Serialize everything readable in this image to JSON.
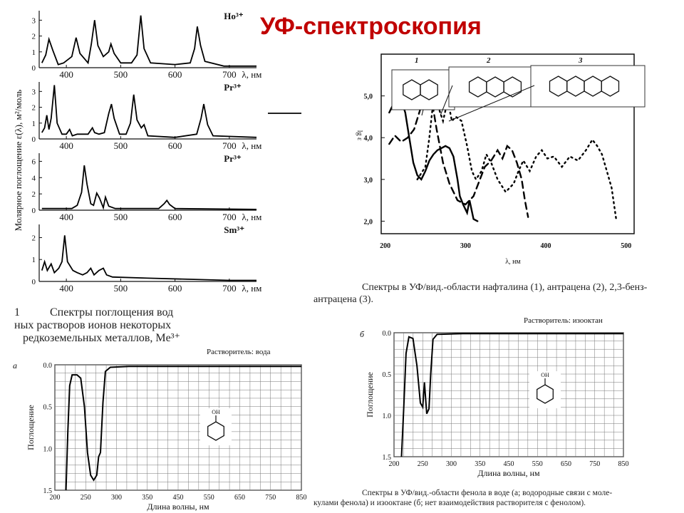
{
  "slide": {
    "title": "УФ-спектроскопия",
    "rare_earth_caption_lines": [
      "Спектры поглощения вод",
      "ных растворов ионов некоторых",
      "редкоземельных металлов, Me³⁺"
    ],
    "rare_earth_caption_number": "1",
    "aromatic_caption_lines": [
      "Спектры в УФ/вид.-области нафталина (1), антрацена (2), 2,3-бенз-",
      "антрацена (3)."
    ],
    "phenol_caption_lines": [
      "Спектры в УФ/вид.-области фенола в воде (а; водородные связи с моле-",
      "кулами фенола) и изооктане (б; нет взаимодействия растворителя с фенолом)."
    ],
    "panel_a_letter": "а",
    "panel_b_letter": "б",
    "solvent_water": "Растворитель: вода",
    "solvent_isooctane": "Растворитель: изооктан",
    "oh_label": "OH"
  },
  "chart_data": [
    {
      "id": "rare-earth",
      "type": "line",
      "ylabel": "Молярное поглощение ε(λ), м²/моль",
      "xlabel": "λ, нм",
      "x_ticks": [
        400,
        500,
        600,
        700
      ],
      "xlim": [
        350,
        750
      ],
      "panels": [
        {
          "ion": "Ho³⁺",
          "y_ticks": [
            0,
            1,
            2,
            3
          ],
          "ylim": [
            0,
            3.6
          ],
          "points": [
            [
              355,
              0.3
            ],
            [
              362,
              0.8
            ],
            [
              368,
              1.8
            ],
            [
              375,
              1.1
            ],
            [
              385,
              0.2
            ],
            [
              395,
              0.3
            ],
            [
              410,
              0.7
            ],
            [
              418,
              1.9
            ],
            [
              425,
              0.9
            ],
            [
              440,
              0.3
            ],
            [
              446,
              1.5
            ],
            [
              452,
              3.0
            ],
            [
              458,
              1.4
            ],
            [
              468,
              0.7
            ],
            [
              478,
              1.0
            ],
            [
              482,
              1.5
            ],
            [
              488,
              0.9
            ],
            [
              500,
              0.3
            ],
            [
              520,
              0.3
            ],
            [
              530,
              0.8
            ],
            [
              537,
              3.3
            ],
            [
              543,
              1.2
            ],
            [
              555,
              0.3
            ],
            [
              600,
              0.2
            ],
            [
              628,
              0.3
            ],
            [
              636,
              1.2
            ],
            [
              641,
              2.6
            ],
            [
              647,
              1.4
            ],
            [
              655,
              0.4
            ],
            [
              690,
              0.1
            ],
            [
              750,
              0.1
            ]
          ]
        },
        {
          "ion": "Pr³⁺",
          "y_ticks": [
            0,
            1,
            2,
            3
          ],
          "ylim": [
            0,
            3.6
          ],
          "points": [
            [
              355,
              0.4
            ],
            [
              360,
              0.7
            ],
            [
              364,
              1.5
            ],
            [
              368,
              0.6
            ],
            [
              372,
              1.3
            ],
            [
              378,
              3.4
            ],
            [
              383,
              1.0
            ],
            [
              392,
              0.3
            ],
            [
              400,
              0.3
            ],
            [
              406,
              0.6
            ],
            [
              411,
              0.2
            ],
            [
              420,
              0.3
            ],
            [
              440,
              0.3
            ],
            [
              448,
              0.7
            ],
            [
              452,
              0.4
            ],
            [
              460,
              0.3
            ],
            [
              470,
              0.4
            ],
            [
              478,
              1.6
            ],
            [
              483,
              2.2
            ],
            [
              488,
              1.3
            ],
            [
              498,
              0.3
            ],
            [
              510,
              0.3
            ],
            [
              518,
              1.0
            ],
            [
              524,
              2.8
            ],
            [
              530,
              1.2
            ],
            [
              538,
              0.7
            ],
            [
              543,
              0.9
            ],
            [
              550,
              0.2
            ],
            [
              600,
              0.1
            ],
            [
              640,
              0.3
            ],
            [
              648,
              1.3
            ],
            [
              653,
              2.2
            ],
            [
              660,
              0.9
            ],
            [
              670,
              0.2
            ],
            [
              750,
              0.1
            ]
          ]
        },
        {
          "ion": "Pr³⁺",
          "y_ticks": [
            0,
            2,
            4,
            6
          ],
          "ylim": [
            0,
            7
          ],
          "points": [
            [
              355,
              0.2
            ],
            [
              410,
              0.2
            ],
            [
              420,
              0.6
            ],
            [
              428,
              2.2
            ],
            [
              433,
              5.5
            ],
            [
              438,
              3.2
            ],
            [
              445,
              0.8
            ],
            [
              450,
              0.6
            ],
            [
              456,
              2.1
            ],
            [
              461,
              1.5
            ],
            [
              468,
              0.3
            ],
            [
              472,
              1.6
            ],
            [
              478,
              0.5
            ],
            [
              490,
              0.2
            ],
            [
              570,
              0.2
            ],
            [
              580,
              0.8
            ],
            [
              585,
              1.2
            ],
            [
              590,
              0.7
            ],
            [
              600,
              0.2
            ],
            [
              750,
              0.1
            ]
          ]
        },
        {
          "ion": "Sm³⁺",
          "y_ticks": [
            0,
            1,
            2
          ],
          "ylim": [
            0,
            2.6
          ],
          "points": [
            [
              355,
              0.5
            ],
            [
              360,
              0.9
            ],
            [
              365,
              0.5
            ],
            [
              372,
              0.8
            ],
            [
              378,
              0.4
            ],
            [
              386,
              0.6
            ],
            [
              392,
              0.9
            ],
            [
              397,
              2.1
            ],
            [
              402,
              0.9
            ],
            [
              412,
              0.5
            ],
            [
              420,
              0.4
            ],
            [
              430,
              0.3
            ],
            [
              438,
              0.4
            ],
            [
              445,
              0.6
            ],
            [
              451,
              0.3
            ],
            [
              460,
              0.5
            ],
            [
              468,
              0.6
            ],
            [
              474,
              0.3
            ],
            [
              485,
              0.2
            ],
            [
              550,
              0.15
            ],
            [
              700,
              0.05
            ],
            [
              750,
              0.05
            ]
          ]
        }
      ]
    },
    {
      "id": "aromatic",
      "type": "line",
      "ylabel": "lg ε",
      "xlabel": "λ, нм",
      "x_ticks": [
        200,
        300,
        400,
        500
      ],
      "y_ticks": [
        2.0,
        3.0,
        4.0,
        5.0
      ],
      "y_tick_labels": [
        "2,0",
        "3,0",
        "4,0",
        "5,0"
      ],
      "xlim": [
        195,
        510
      ],
      "ylim": [
        1.7,
        6.0
      ],
      "structure_labels": [
        "1",
        "2",
        "3"
      ],
      "series": [
        {
          "name": "1",
          "style": "solid",
          "points": [
            [
              205,
              4.6
            ],
            [
              210,
              4.8
            ],
            [
              215,
              5.0
            ],
            [
              220,
              4.9
            ],
            [
              225,
              4.6
            ],
            [
              230,
              4.0
            ],
            [
              235,
              3.4
            ],
            [
              240,
              3.1
            ],
            [
              245,
              3.0
            ],
            [
              250,
              3.2
            ],
            [
              255,
              3.45
            ],
            [
              260,
              3.6
            ],
            [
              265,
              3.7
            ],
            [
              270,
              3.75
            ],
            [
              275,
              3.8
            ],
            [
              280,
              3.75
            ],
            [
              285,
              3.55
            ],
            [
              290,
              3.0
            ],
            [
              293,
              2.6
            ],
            [
              297,
              2.4
            ],
            [
              302,
              2.2
            ],
            [
              305,
              2.5
            ],
            [
              310,
              2.05
            ],
            [
              315,
              2.0
            ]
          ]
        },
        {
          "name": "2",
          "style": "dashed",
          "points": [
            [
              205,
              3.85
            ],
            [
              212,
              4.05
            ],
            [
              220,
              3.9
            ],
            [
              228,
              4.0
            ],
            [
              236,
              4.2
            ],
            [
              244,
              4.7
            ],
            [
              252,
              5.3
            ],
            [
              258,
              4.9
            ],
            [
              264,
              4.2
            ],
            [
              272,
              3.4
            ],
            [
              280,
              2.9
            ],
            [
              290,
              2.5
            ],
            [
              300,
              2.4
            ],
            [
              310,
              2.6
            ],
            [
              318,
              3.0
            ],
            [
              324,
              3.3
            ],
            [
              332,
              3.45
            ],
            [
              340,
              3.7
            ],
            [
              346,
              3.5
            ],
            [
              352,
              3.8
            ],
            [
              358,
              3.7
            ],
            [
              364,
              3.4
            ],
            [
              370,
              3.0
            ],
            [
              374,
              2.5
            ],
            [
              378,
              2.1
            ]
          ]
        },
        {
          "name": "3",
          "style": "dotted",
          "points": [
            [
              240,
              3.0
            ],
            [
              250,
              3.3
            ],
            [
              255,
              4.0
            ],
            [
              260,
              4.9
            ],
            [
              265,
              4.8
            ],
            [
              272,
              4.4
            ],
            [
              278,
              4.9
            ],
            [
              283,
              4.4
            ],
            [
              288,
              4.5
            ],
            [
              295,
              4.4
            ],
            [
              302,
              3.8
            ],
            [
              308,
              3.2
            ],
            [
              313,
              3.0
            ],
            [
              320,
              3.2
            ],
            [
              326,
              3.6
            ],
            [
              332,
              3.4
            ],
            [
              340,
              3.0
            ],
            [
              350,
              2.7
            ],
            [
              360,
              2.9
            ],
            [
              366,
              3.2
            ],
            [
              372,
              3.45
            ],
            [
              380,
              3.2
            ],
            [
              388,
              3.55
            ],
            [
              395,
              3.7
            ],
            [
              402,
              3.5
            ],
            [
              410,
              3.55
            ],
            [
              420,
              3.3
            ],
            [
              430,
              3.55
            ],
            [
              440,
              3.45
            ],
            [
              450,
              3.7
            ],
            [
              458,
              3.95
            ],
            [
              464,
              3.8
            ],
            [
              470,
              3.6
            ],
            [
              476,
              3.2
            ],
            [
              482,
              2.8
            ],
            [
              488,
              2.0
            ]
          ]
        }
      ]
    },
    {
      "id": "phenol-water",
      "type": "line",
      "ylabel": "Поглощение",
      "xlabel": "Длина волны, нм",
      "x_ticks": [
        200,
        250,
        300,
        350,
        450,
        550,
        650,
        750,
        850
      ],
      "y_ticks": [
        0.0,
        0.5,
        1.0,
        1.5
      ],
      "y_tick_labels": [
        "0.0",
        "0.5",
        "1.0",
        "1.5"
      ],
      "y_inverted": true,
      "points": [
        [
          218,
          1.5
        ],
        [
          221,
          0.8
        ],
        [
          224,
          0.25
        ],
        [
          228,
          0.12
        ],
        [
          236,
          0.12
        ],
        [
          242,
          0.16
        ],
        [
          248,
          0.5
        ],
        [
          253,
          1.05
        ],
        [
          258,
          1.32
        ],
        [
          263,
          1.38
        ],
        [
          268,
          1.32
        ],
        [
          271,
          1.1
        ],
        [
          274,
          1.05
        ],
        [
          278,
          0.45
        ],
        [
          282,
          0.08
        ],
        [
          290,
          0.03
        ],
        [
          320,
          0.02
        ],
        [
          850,
          0.02
        ]
      ]
    },
    {
      "id": "phenol-isooctane",
      "type": "line",
      "ylabel": "Поглощение",
      "xlabel": "Длина волны, нм",
      "x_ticks": [
        200,
        250,
        300,
        350,
        450,
        550,
        650,
        750,
        850
      ],
      "y_ticks": [
        0.0,
        0.5,
        1.0,
        1.5
      ],
      "y_tick_labels": [
        "0.0",
        "0.5",
        "1.0",
        "1.5"
      ],
      "y_inverted": true,
      "points": [
        [
          213,
          1.5
        ],
        [
          217,
          0.9
        ],
        [
          221,
          0.25
        ],
        [
          226,
          0.05
        ],
        [
          233,
          0.07
        ],
        [
          240,
          0.4
        ],
        [
          246,
          0.85
        ],
        [
          250,
          0.9
        ],
        [
          253,
          0.6
        ],
        [
          257,
          0.98
        ],
        [
          261,
          0.92
        ],
        [
          264,
          0.5
        ],
        [
          268,
          0.08
        ],
        [
          275,
          0.02
        ],
        [
          320,
          0.01
        ],
        [
          850,
          0.01
        ]
      ]
    }
  ]
}
